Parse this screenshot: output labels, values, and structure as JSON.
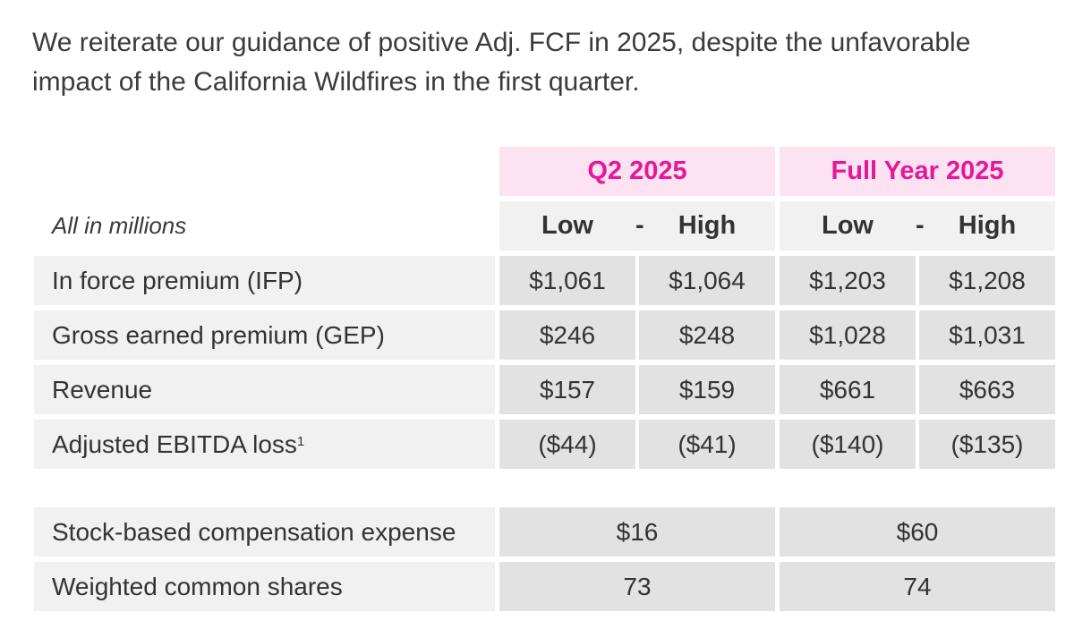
{
  "headline": "We reiterate our guidance of positive Adj. FCF in 2025, despite the unfavorable impact of the California Wildfires in the first quarter.",
  "units_label": "All in millions",
  "periods": [
    {
      "title": "Q2 2025",
      "low_label": "Low",
      "separator": "-",
      "high_label": "High"
    },
    {
      "title": "Full Year 2025",
      "low_label": "Low",
      "separator": "-",
      "high_label": "High"
    }
  ],
  "rows": [
    {
      "label": "In force premium (IFP)",
      "footnote": "",
      "values": [
        "$1,061",
        "$1,064",
        "$1,203",
        "$1,208"
      ]
    },
    {
      "label": "Gross earned premium (GEP)",
      "footnote": "",
      "values": [
        "$246",
        "$248",
        "$1,028",
        "$1,031"
      ]
    },
    {
      "label": "Revenue",
      "footnote": "",
      "values": [
        "$157",
        "$159",
        "$661",
        "$663"
      ]
    },
    {
      "label": "Adjusted EBITDA loss",
      "footnote": "1",
      "values": [
        "($44)",
        "($41)",
        "($140)",
        "($135)"
      ]
    }
  ],
  "extra_rows": [
    {
      "label": "Stock-based compensation expense",
      "values": [
        "$16",
        "$60"
      ]
    },
    {
      "label": "Weighted common shares",
      "values": [
        "73",
        "74"
      ]
    }
  ],
  "colors": {
    "accent": "#e5189a",
    "accent_bg": "#fde3f1",
    "label_bg": "#f1f1f1",
    "value_bg": "#e2e2e2"
  }
}
